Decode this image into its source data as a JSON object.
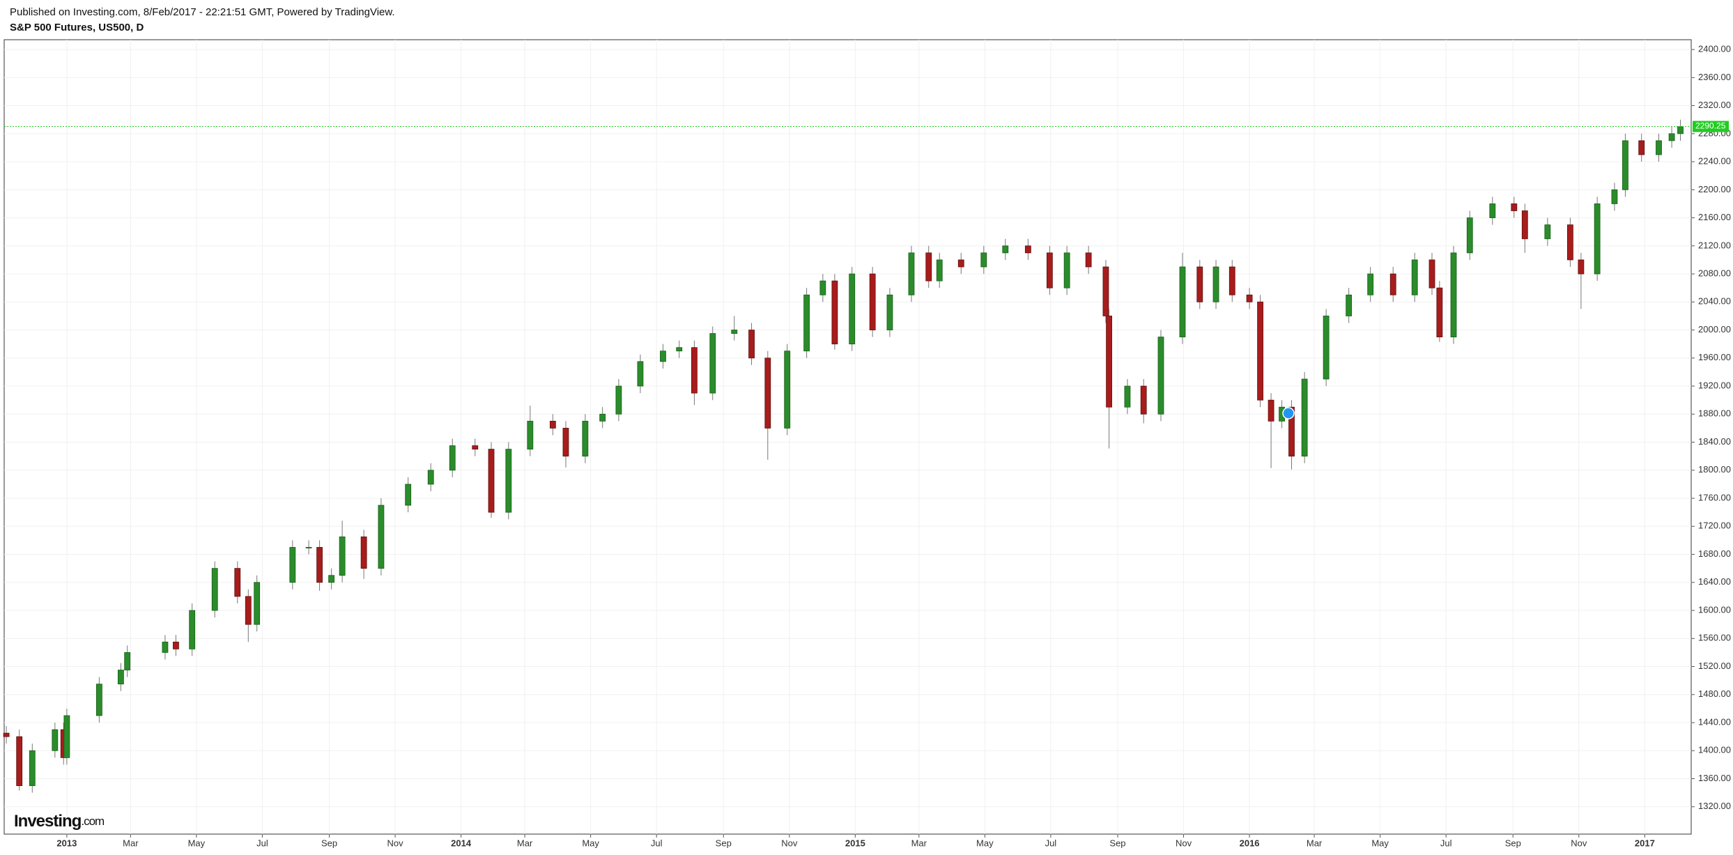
{
  "chart_data": {
    "type": "candlestick",
    "caption": "Published on Investing.com, 8/Feb/2017 - 22:21:51 GMT, Powered by TradingView.",
    "title": "S&P 500 Futures, US500, D",
    "watermark_brand": "Investing",
    "watermark_suffix": ".com",
    "up_color": "#2a8c2a",
    "down_color": "#a81c1c",
    "wick_color": "#777777",
    "last_price": 2290.25,
    "last_price_color": "#22cc22",
    "grid": true,
    "xlim": [
      -58,
      1504
    ],
    "ylim": [
      1281,
      2414
    ],
    "xticks": [
      {
        "value": 0,
        "label": "2013"
      },
      {
        "value": 59,
        "label": "Mar"
      },
      {
        "value": 120,
        "label": "May"
      },
      {
        "value": 181,
        "label": "Jul"
      },
      {
        "value": 243,
        "label": "Sep"
      },
      {
        "value": 304,
        "label": "Nov"
      },
      {
        "value": 365,
        "label": "2014"
      },
      {
        "value": 424,
        "label": "Mar"
      },
      {
        "value": 485,
        "label": "May"
      },
      {
        "value": 546,
        "label": "Jul"
      },
      {
        "value": 608,
        "label": "Sep"
      },
      {
        "value": 669,
        "label": "Nov"
      },
      {
        "value": 730,
        "label": "2015"
      },
      {
        "value": 789,
        "label": "Mar"
      },
      {
        "value": 850,
        "label": "May"
      },
      {
        "value": 911,
        "label": "Jul"
      },
      {
        "value": 973,
        "label": "Sep"
      },
      {
        "value": 1034,
        "label": "Nov"
      },
      {
        "value": 1095,
        "label": "2016"
      },
      {
        "value": 1155,
        "label": "Mar"
      },
      {
        "value": 1216,
        "label": "May"
      },
      {
        "value": 1277,
        "label": "Jul"
      },
      {
        "value": 1339,
        "label": "Sep"
      },
      {
        "value": 1400,
        "label": "Nov"
      },
      {
        "value": 1461,
        "label": "2017"
      }
    ],
    "yticks": [
      {
        "value": 1320,
        "label": "1320.00"
      },
      {
        "value": 1360,
        "label": "1360.00"
      },
      {
        "value": 1400,
        "label": "1400.00"
      },
      {
        "value": 1440,
        "label": "1440.00"
      },
      {
        "value": 1480,
        "label": "1480.00"
      },
      {
        "value": 1520,
        "label": "1520.00"
      },
      {
        "value": 1560,
        "label": "1560.00"
      },
      {
        "value": 1600,
        "label": "1600.00"
      },
      {
        "value": 1640,
        "label": "1640.00"
      },
      {
        "value": 1680,
        "label": "1680.00"
      },
      {
        "value": 1720,
        "label": "1720.00"
      },
      {
        "value": 1760,
        "label": "1760.00"
      },
      {
        "value": 1800,
        "label": "1800.00"
      },
      {
        "value": 1840,
        "label": "1840.00"
      },
      {
        "value": 1880,
        "label": "1880.00"
      },
      {
        "value": 1920,
        "label": "1920.00"
      },
      {
        "value": 1960,
        "label": "1960.00"
      },
      {
        "value": 2000,
        "label": "2000.00"
      },
      {
        "value": 2040,
        "label": "2040.00"
      },
      {
        "value": 2080,
        "label": "2080.00"
      },
      {
        "value": 2120,
        "label": "2120.00"
      },
      {
        "value": 2160,
        "label": "2160.00"
      },
      {
        "value": 2200,
        "label": "2200.00"
      },
      {
        "value": 2240,
        "label": "2240.00"
      },
      {
        "value": 2280,
        "label": "2280.00"
      },
      {
        "value": 2320,
        "label": "2320.00"
      },
      {
        "value": 2360,
        "label": "2360.00"
      },
      {
        "value": 2400,
        "label": "2400.00"
      }
    ],
    "x": [
      -56,
      -44,
      -32,
      -11,
      -3,
      0,
      30,
      50,
      56,
      91,
      101,
      116,
      137,
      158,
      168,
      176,
      209,
      224,
      234,
      245,
      255,
      275,
      291,
      316,
      337,
      357,
      378,
      393,
      409,
      429,
      450,
      462,
      480,
      496,
      511,
      531,
      552,
      567,
      581,
      598,
      618,
      634,
      649,
      667,
      685,
      700,
      711,
      727,
      746,
      762,
      782,
      798,
      808,
      828,
      849,
      869,
      890,
      910,
      926,
      946,
      962,
      965,
      982,
      997,
      1013,
      1033,
      1049,
      1064,
      1079,
      1095,
      1105,
      1115,
      1125,
      1134,
      1146,
      1166,
      1187,
      1207,
      1228,
      1248,
      1264,
      1271,
      1284,
      1299,
      1320,
      1340,
      1350,
      1371,
      1392,
      1402,
      1417,
      1433,
      1443,
      1458,
      1474,
      1486,
      1494
    ],
    "open": [
      1425,
      1420,
      1350,
      1400,
      1430,
      1390,
      1450,
      1495,
      1515,
      1540,
      1555,
      1545,
      1600,
      1660,
      1620,
      1580,
      1640,
      1690,
      1690,
      1640,
      1650,
      1705,
      1660,
      1750,
      1780,
      1800,
      1835,
      1830,
      1740,
      1830,
      1870,
      1860,
      1820,
      1870,
      1880,
      1920,
      1955,
      1970,
      1975,
      1910,
      1995,
      2000,
      1960,
      1860,
      1970,
      2050,
      2070,
      1980,
      2080,
      2000,
      2050,
      2110,
      2070,
      2100,
      2090,
      2110,
      2120,
      2110,
      2060,
      2110,
      2090,
      2020,
      1890,
      1920,
      1880,
      1990,
      2090,
      2040,
      2090,
      2050,
      2040,
      1900,
      1870,
      1890,
      1820,
      1930,
      2020,
      2050,
      2080,
      2050,
      2100,
      2060,
      1990,
      2110,
      2160,
      2180,
      2170,
      2130,
      2150,
      2100,
      2080,
      2180,
      2200,
      2270,
      2250,
      2270,
      2280
    ],
    "high": [
      1435,
      1430,
      1410,
      1440,
      1440,
      1460,
      1505,
      1525,
      1550,
      1565,
      1565,
      1610,
      1670,
      1670,
      1630,
      1650,
      1700,
      1700,
      1700,
      1660,
      1728,
      1715,
      1760,
      1790,
      1810,
      1845,
      1845,
      1840,
      1840,
      1892,
      1880,
      1870,
      1880,
      1890,
      1930,
      1965,
      1980,
      1985,
      1985,
      2005,
      2020,
      2010,
      1970,
      1980,
      2060,
      2080,
      2080,
      2090,
      2090,
      2060,
      2120,
      2120,
      2110,
      2110,
      2120,
      2130,
      2130,
      2120,
      2120,
      2120,
      2100,
      2030,
      1930,
      1930,
      2000,
      2110,
      2100,
      2100,
      2100,
      2060,
      2050,
      1910,
      1900,
      1900,
      1940,
      2030,
      2060,
      2090,
      2090,
      2110,
      2110,
      2070,
      2120,
      2170,
      2190,
      2190,
      2180,
      2160,
      2160,
      2110,
      2190,
      2210,
      2280,
      2280,
      2280,
      2290,
      2300
    ],
    "low": [
      1410,
      1343,
      1340,
      1390,
      1380,
      1380,
      1440,
      1485,
      1505,
      1530,
      1535,
      1535,
      1590,
      1610,
      1555,
      1570,
      1630,
      1680,
      1628,
      1630,
      1640,
      1645,
      1650,
      1740,
      1770,
      1790,
      1820,
      1732,
      1730,
      1820,
      1850,
      1804,
      1810,
      1860,
      1870,
      1910,
      1945,
      1960,
      1893,
      1900,
      1985,
      1950,
      1815,
      1850,
      1960,
      2040,
      1972,
      1970,
      1990,
      1990,
      2040,
      2060,
      2060,
      2080,
      2080,
      2100,
      2100,
      2050,
      2050,
      2080,
      2010,
      1831,
      1880,
      1867,
      1870,
      1980,
      2030,
      2030,
      2040,
      2030,
      1890,
      1803,
      1860,
      1801,
      1810,
      1920,
      2010,
      2040,
      2040,
      2040,
      2050,
      1983,
      1980,
      2100,
      2150,
      2160,
      2110,
      2120,
      2090,
      2030,
      2070,
      2170,
      2190,
      2240,
      2240,
      2260,
      2270
    ],
    "close": [
      1420,
      1350,
      1400,
      1430,
      1390,
      1450,
      1495,
      1515,
      1540,
      1555,
      1545,
      1600,
      1660,
      1620,
      1580,
      1640,
      1690,
      1690,
      1640,
      1650,
      1705,
      1660,
      1750,
      1780,
      1800,
      1835,
      1830,
      1740,
      1830,
      1870,
      1860,
      1820,
      1870,
      1880,
      1920,
      1955,
      1970,
      1975,
      1910,
      1995,
      2000,
      1960,
      1860,
      1970,
      2050,
      2070,
      1980,
      2080,
      2000,
      2050,
      2110,
      2070,
      2100,
      2090,
      2110,
      2120,
      2110,
      2060,
      2110,
      2090,
      2020,
      1890,
      1920,
      1880,
      1990,
      2090,
      2040,
      2090,
      2050,
      2040,
      1900,
      1870,
      1890,
      1820,
      1930,
      2020,
      2050,
      2080,
      2050,
      2100,
      2060,
      1990,
      2110,
      2160,
      2180,
      2170,
      2130,
      2150,
      2100,
      2080,
      2180,
      2200,
      2270,
      2250,
      2270,
      2280,
      2290
    ]
  }
}
